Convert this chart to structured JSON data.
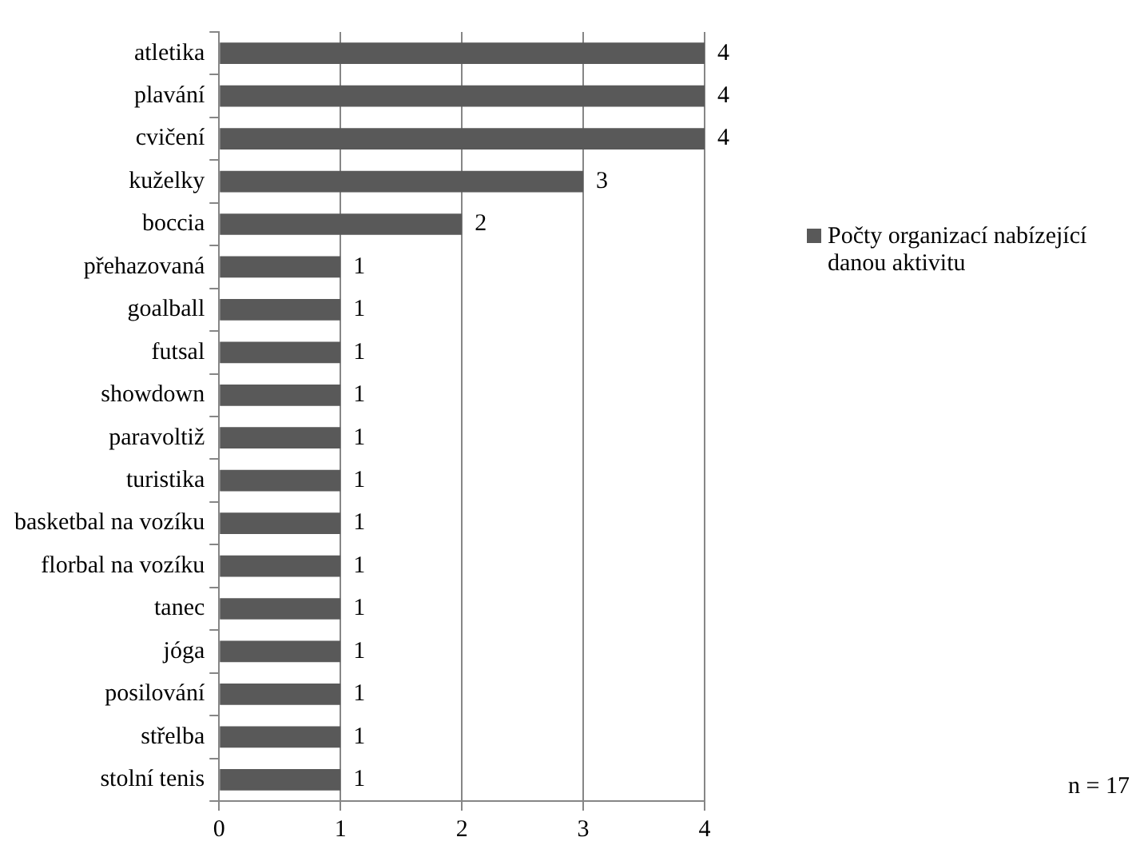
{
  "chart_data": {
    "type": "bar",
    "orientation": "horizontal",
    "categories": [
      "atletika",
      "plavání",
      "cvičení",
      "kuželky",
      "boccia",
      "přehazovaná",
      "goalball",
      "futsal",
      "showdown",
      "paravoltiž",
      "turistika",
      "basketbal na vozíku",
      "florbal na vozíku",
      "tanec",
      "jóga",
      "posilování",
      "střelba",
      "stolní tenis"
    ],
    "series": [
      {
        "name": "Počty organizací nabízející danou aktivitu",
        "color": "#595959",
        "values": [
          4,
          4,
          4,
          3,
          2,
          1,
          1,
          1,
          1,
          1,
          1,
          1,
          1,
          1,
          1,
          1,
          1,
          1
        ]
      }
    ],
    "xlim": [
      0,
      4
    ],
    "xticks": [
      0,
      1,
      2,
      3,
      4
    ],
    "grid": "x",
    "legend": "right",
    "data_labels": true,
    "annotations": [
      "n = 17"
    ]
  }
}
